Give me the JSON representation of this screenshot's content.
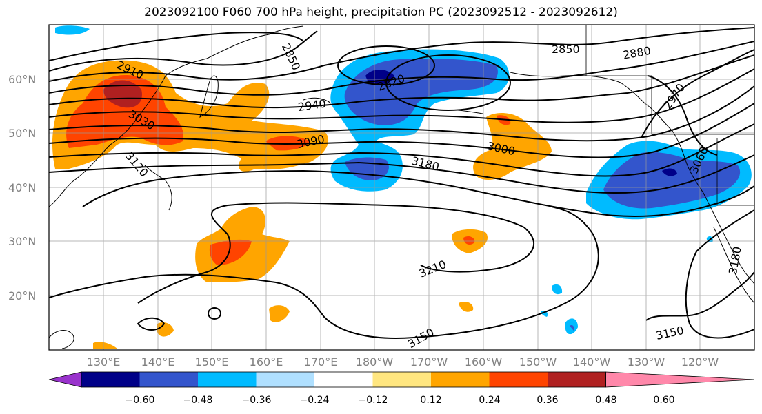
{
  "title": "2023092100 F060 700 hPa height, precipitation PC (2023092512 - 2023092612)",
  "lat_labels": [
    "60°N",
    "50°N",
    "40°N",
    "30°N",
    "20°N"
  ],
  "lon_labels": [
    "130°E",
    "140°E",
    "150°E",
    "160°E",
    "170°E",
    "180°W",
    "170°W",
    "160°W",
    "150°W",
    "140°W",
    "130°W",
    "120°W"
  ],
  "contour_labels": [
    "2850",
    "2820",
    "2850",
    "2880",
    "2910",
    "2940",
    "3030",
    "3090",
    "3000",
    "2970",
    "3060",
    "3120",
    "3180",
    "3210",
    "3150",
    "3150",
    "3180"
  ],
  "colorbar": {
    "colors": [
      "#9933cc",
      "#000088",
      "#3355cc",
      "#00bbff",
      "#b0e0ff",
      "#ffffff",
      "#ffe680",
      "#ffa500",
      "#ff4400",
      "#b02020",
      "#ff88aa"
    ],
    "ticks": [
      "−0.60",
      "−0.48",
      "−0.36",
      "−0.24",
      "−0.12",
      "0.12",
      "0.24",
      "0.36",
      "0.48",
      "0.60"
    ]
  },
  "colors": {
    "positive_high": "#ff4400",
    "positive_mid": "#ffa500",
    "positive_low": "#ffe680",
    "negative_low": "#00bbff",
    "negative_mid": "#3355cc",
    "negative_high": "#000088"
  }
}
